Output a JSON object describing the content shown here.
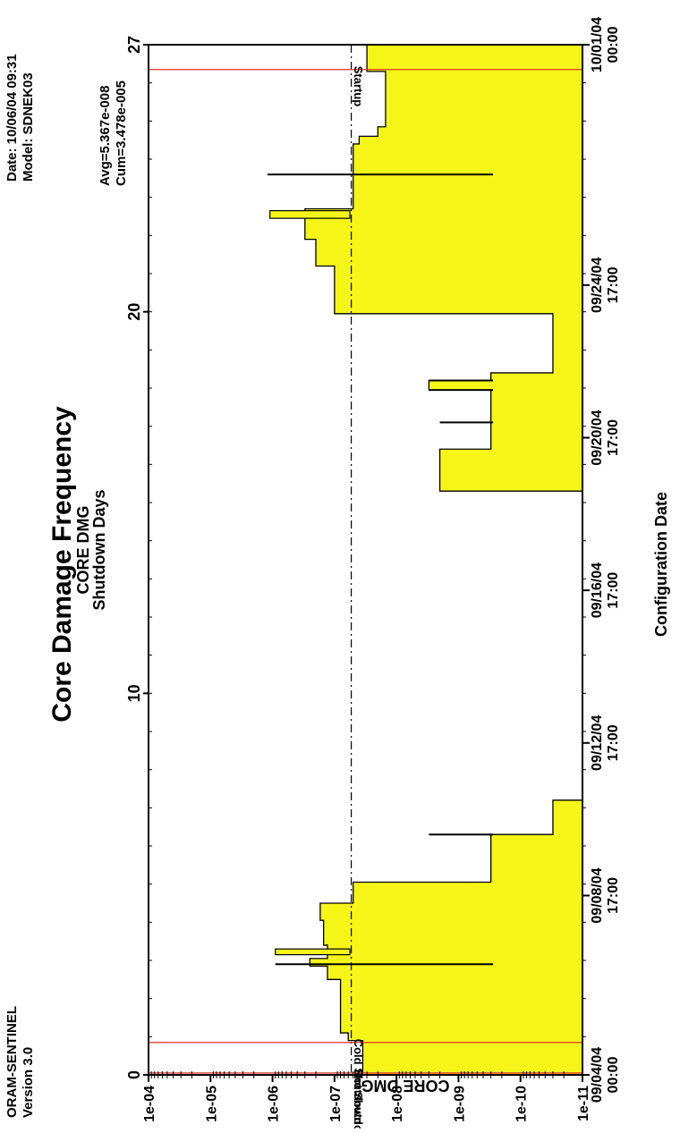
{
  "header": {
    "product": "ORAM-SENTINEL",
    "version": "Version 3.0",
    "date_line": "Date: 10/06/04   09:31",
    "model_line": "Model: SDNEK03"
  },
  "chart_data": {
    "type": "area",
    "orientation": "rotated-90-counterclockwise",
    "title": "Core Damage Frequency",
    "subtitle_line1": "CORE DMG",
    "subtitle_line2": "Shutdown Days",
    "xlabel": "Configuration Date",
    "ylabel": "CORE DMG",
    "y_scale": "log",
    "ylim": [
      1e-11,
      0.0001
    ],
    "y_ticks": [
      "1e-04",
      "1e-05",
      "1e-06",
      "1e-07",
      "1e-08",
      "1e-09",
      "1e-10",
      "1e-11"
    ],
    "xlim": [
      0,
      27
    ],
    "days_ticks": [
      "0",
      "10",
      "20",
      "27"
    ],
    "date_ticks": [
      {
        "day": 0,
        "line1": "09/04/04",
        "line2": "00:00"
      },
      {
        "day": 4.7,
        "line1": "09/08/04",
        "line2": "17:00"
      },
      {
        "day": 8.7,
        "line1": "09/12/04",
        "line2": "17:00"
      },
      {
        "day": 12.7,
        "line1": "09/16/04",
        "line2": "17:00"
      },
      {
        "day": 16.7,
        "line1": "09/20/04",
        "line2": "17:00"
      },
      {
        "day": 20.7,
        "line1": "09/24/04",
        "line2": "17:00"
      },
      {
        "day": 27,
        "line1": "10/01/04",
        "line2": "00:00"
      }
    ],
    "stats": {
      "avg": "Avg=5.367e-008",
      "cum": "Cum=3.478e-005"
    },
    "average_value": 5.367e-08,
    "fill_color": "#f5f518",
    "events": [
      {
        "label": "Hot Shutdown",
        "day": 0.05
      },
      {
        "label": "Cold Shutdown",
        "day": 0.85
      },
      {
        "label": "Startup",
        "day": 26.35
      }
    ],
    "event_color": "#e0302a",
    "series_steps": [
      {
        "from": 0,
        "to": 0.9,
        "value": 3.5e-08
      },
      {
        "from": 0.9,
        "to": 1.1,
        "value": 6e-08
      },
      {
        "from": 1.1,
        "to": 2.5,
        "value": 8e-08
      },
      {
        "from": 2.5,
        "to": 2.85,
        "value": 1.3e-07
      },
      {
        "from": 2.85,
        "to": 3.05,
        "value": 2.5e-07
      },
      {
        "from": 3.05,
        "to": 3.4,
        "value": 1.3e-07
      },
      {
        "from": 3.4,
        "to": 4.05,
        "value": 1.5e-07
      },
      {
        "from": 4.05,
        "to": 4.5,
        "value": 1.7e-07
      },
      {
        "from": 4.5,
        "to": 5.05,
        "value": 5e-08
      },
      {
        "from": 5.05,
        "to": 6.3,
        "value": 3e-10
      },
      {
        "from": 6.3,
        "to": 7.2,
        "value": 3e-11
      },
      {
        "from": 7.2,
        "to": 15.3,
        "value": 1e-11
      },
      {
        "from": 15.3,
        "to": 16.4,
        "value": 2e-09
      },
      {
        "from": 16.4,
        "to": 17.1,
        "value": 3e-10
      },
      {
        "from": 17.1,
        "to": 17.95,
        "value": 3e-10
      },
      {
        "from": 17.95,
        "to": 18.2,
        "value": 3e-09
      },
      {
        "from": 18.2,
        "to": 18.4,
        "value": 3e-10
      },
      {
        "from": 18.4,
        "to": 19.95,
        "value": 3e-11
      },
      {
        "from": 19.95,
        "to": 21.2,
        "value": 1e-07
      },
      {
        "from": 21.2,
        "to": 21.9,
        "value": 2e-07
      },
      {
        "from": 21.9,
        "to": 22.4,
        "value": 3e-07
      },
      {
        "from": 22.4,
        "to": 22.7,
        "value": 3e-07
      },
      {
        "from": 22.7,
        "to": 24.4,
        "value": 5e-08
      },
      {
        "from": 24.4,
        "to": 24.6,
        "value": 4e-08
      },
      {
        "from": 24.6,
        "to": 24.85,
        "value": 2e-08
      },
      {
        "from": 24.85,
        "to": 26.3,
        "value": 1.5e-08
      },
      {
        "from": 26.3,
        "to": 27,
        "value": 3e-08
      }
    ],
    "spikes": [
      {
        "day": 2.9,
        "value": 9e-07
      },
      {
        "day": 6.3,
        "value": 3e-09
      },
      {
        "day": 17.1,
        "value": 2e-09
      },
      {
        "day": 17.95,
        "value": 3e-09
      },
      {
        "day": 18.2,
        "value": 3e-09
      },
      {
        "day": 23.6,
        "value": 1.2e-06
      }
    ],
    "highlight_peaks": [
      {
        "from": 3.15,
        "to": 3.3,
        "value": 9e-07
      },
      {
        "from": 22.45,
        "to": 22.65,
        "value": 1.1e-06
      }
    ]
  }
}
